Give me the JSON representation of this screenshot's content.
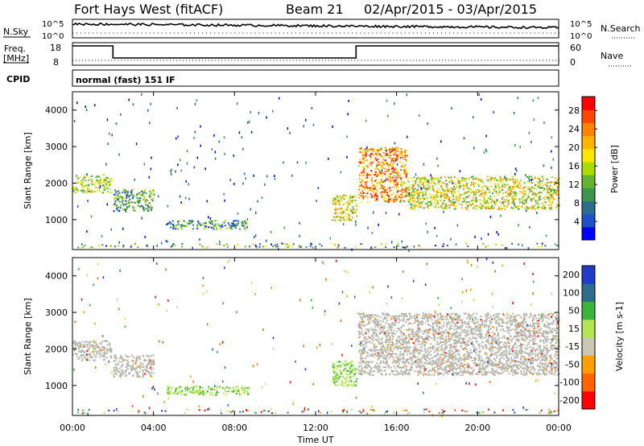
{
  "header": {
    "title": "Fort Hays West (fitACF)",
    "beam": "Beam 21",
    "date_range": "02/Apr/2015 - 03/Apr/2015"
  },
  "noise_panel": {
    "left_label": "N.Sky",
    "right_label": "N.Search",
    "y_ticks": [
      "10^5",
      "10^0"
    ]
  },
  "freq_panel": {
    "left_label_line1": "Freq.",
    "left_label_line2": "[MHz]",
    "left_ticks": [
      "18",
      "8"
    ],
    "right_ticks": [
      "60",
      "0"
    ],
    "right_label": "Nave"
  },
  "cpid": {
    "label": "CPID",
    "value": "normal (fast) 151 IF"
  },
  "colors": {
    "power_scale": [
      "#0000ff",
      "#1e50c8",
      "#2d6e8c",
      "#3c9650",
      "#64b432",
      "#aadc00",
      "#ffe600",
      "#ffb400",
      "#ff8200",
      "#ff4600",
      "#ff0000"
    ],
    "velocity_scale": [
      "#ff0000",
      "#ff6400",
      "#ffa000",
      "#c8c8b4",
      "#b4e650",
      "#3cb43c",
      "#2d6e8c",
      "#1e3cc8"
    ],
    "ground_scatter": "#b4b4aa"
  },
  "chart_data": [
    {
      "type": "heatmap",
      "name_shown": "power",
      "ylabel": "Slant Range [km]",
      "y_ticks": [
        1000,
        2000,
        3000,
        4000
      ],
      "ylim": [
        180,
        4500
      ],
      "xlim": [
        0,
        24
      ],
      "colorbar": {
        "label": "Power [dB]",
        "ticks": [
          4,
          8,
          12,
          16,
          20,
          24,
          28
        ],
        "range": [
          0,
          31
        ]
      },
      "echo_regions": [
        {
          "t0": 0.0,
          "t1": 1.9,
          "r0": 1750,
          "r1": 2250,
          "level": 9
        },
        {
          "t0": 2.0,
          "t1": 4.0,
          "r0": 1250,
          "r1": 1850,
          "level": 6
        },
        {
          "t0": 4.6,
          "t1": 8.7,
          "r0": 760,
          "r1": 1000,
          "level": 5
        },
        {
          "t0": 12.8,
          "t1": 14.0,
          "r0": 1000,
          "r1": 1700,
          "level": 11
        },
        {
          "t0": 14.1,
          "t1": 16.5,
          "r0": 1500,
          "r1": 3000,
          "level": 14
        },
        {
          "t0": 16.5,
          "t1": 24.0,
          "r0": 1300,
          "r1": 2200,
          "level": 10
        }
      ]
    },
    {
      "type": "heatmap",
      "name_shown": "velocity",
      "ylabel": "Slant Range [km]",
      "xlabel": "Time UT",
      "x_ticks": [
        "00:00",
        "04:00",
        "08:00",
        "12:00",
        "16:00",
        "20:00",
        "00:00"
      ],
      "y_ticks": [
        1000,
        2000,
        3000,
        4000
      ],
      "ylim": [
        180,
        4500
      ],
      "xlim": [
        0,
        24
      ],
      "colorbar": {
        "label": "Velocity [m s-1]",
        "ticks": [
          -200,
          -100,
          -50,
          -15,
          15,
          50,
          100,
          200
        ]
      },
      "echo_regions": [
        {
          "t0": 0.0,
          "t1": 1.9,
          "r0": 1700,
          "r1": 2250,
          "kind": "ground"
        },
        {
          "t0": 2.0,
          "t1": 4.0,
          "r0": 1250,
          "r1": 1850,
          "kind": "ground"
        },
        {
          "t0": 4.6,
          "t1": 8.7,
          "r0": 760,
          "r1": 1000,
          "kind": "green"
        },
        {
          "t0": 12.8,
          "t1": 14.0,
          "r0": 1000,
          "r1": 1700,
          "kind": "green"
        },
        {
          "t0": 14.1,
          "t1": 24.0,
          "r0": 1300,
          "r1": 3000,
          "kind": "ground"
        }
      ]
    }
  ],
  "noise_series": {
    "start_value": 0.75,
    "end_value": 0.55
  },
  "freq_series": {
    "segments": [
      {
        "t0": 0,
        "t1": 2.0,
        "level": "high"
      },
      {
        "t0": 2.0,
        "t1": 14.0,
        "level": "low"
      },
      {
        "t0": 14.0,
        "t1": 24.0,
        "level": "high"
      }
    ]
  }
}
